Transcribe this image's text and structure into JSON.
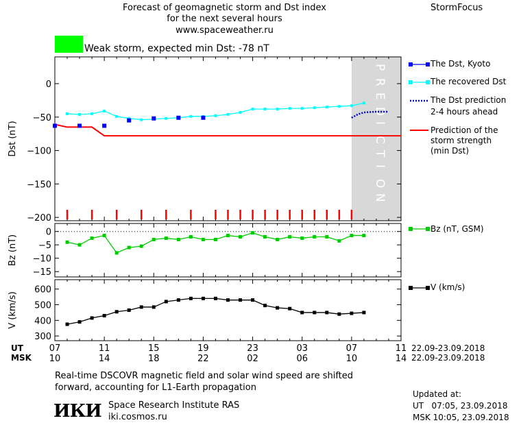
{
  "header": {
    "title_line1": "Forecast of geomagnetic storm and Dst index",
    "title_line2": "for the next several hours",
    "website": "www.spaceweather.ru",
    "brand": "StormFocus"
  },
  "status": {
    "swatch_color": "#00ff00",
    "text": "Weak storm, expected min Dst: -78 nT"
  },
  "colors": {
    "dst_kyoto": "#0000ff",
    "dst_recovered": "#00ffff",
    "dst_prediction": "#0000cc",
    "storm_strength": "#ff0000",
    "bz": "#00cc00",
    "v": "#000000",
    "prediction_band": "#d8d8d8",
    "markers": "#ff0000"
  },
  "prediction_label": "PREDICTION",
  "time_axis": {
    "ut_label": "UT",
    "msk_label": "MSK",
    "ut_ticks": [
      "07",
      "11",
      "15",
      "19",
      "23",
      "03",
      "07",
      "11"
    ],
    "msk_ticks": [
      "10",
      "14",
      "18",
      "22",
      "02",
      "06",
      "10",
      "14"
    ],
    "date_range_ut": "22.09-23.09.2018",
    "date_range_msk": "22.09-23.09.2018"
  },
  "chart_data": [
    {
      "type": "line",
      "panel": "dst",
      "xlabel": "",
      "ylabel": "Dst (nT)",
      "xlim_hours": [
        7,
        35
      ],
      "ylim": [
        -205,
        40
      ],
      "yticks": [
        0,
        -50,
        -100,
        -150,
        -200
      ],
      "prediction_start_hour": 31,
      "series": [
        {
          "name": "The Dst, Kyoto",
          "x": [
            7,
            9,
            11,
            13,
            15,
            17,
            19
          ],
          "values": [
            -63,
            -63,
            -63,
            -55,
            -52,
            -51,
            -51
          ]
        },
        {
          "name": "The recovered Dst",
          "x": [
            8,
            9,
            10,
            11,
            12,
            13,
            14,
            15,
            16,
            17,
            18,
            19,
            20,
            21,
            22,
            23,
            24,
            25,
            26,
            27,
            28,
            29,
            30,
            31,
            32
          ],
          "values": [
            -45,
            -46,
            -45,
            -41,
            -49,
            -52,
            -54,
            -53,
            -52,
            -51,
            -49,
            -49,
            -48,
            -46,
            -43,
            -38,
            -38,
            -38,
            -37,
            -37,
            -36,
            -35,
            -34,
            -33,
            -29
          ]
        },
        {
          "name": "The Dst prediction 2-4 hours ahead",
          "x": [
            31,
            31.5,
            32,
            33,
            34
          ],
          "values": [
            -51,
            -46,
            -43,
            -42,
            -42
          ]
        },
        {
          "name": "Prediction of the storm strength (min Dst)",
          "x": [
            7,
            8,
            10,
            11,
            35
          ],
          "values": [
            -61,
            -65,
            -65,
            -78,
            -78
          ]
        }
      ],
      "event_marker_hours": [
        8,
        10,
        12,
        14,
        16,
        18,
        20,
        21,
        22,
        23,
        24,
        25,
        26,
        27,
        28,
        29,
        30,
        31
      ]
    },
    {
      "type": "line",
      "panel": "bz",
      "xlabel": "",
      "ylabel": "Bz (nT)",
      "ylim": [
        -17,
        3
      ],
      "yticks": [
        0,
        -5,
        -10,
        -15
      ],
      "series": [
        {
          "name": "Bz (nT, GSM)",
          "x": [
            8,
            9,
            10,
            11,
            12,
            13,
            14,
            15,
            16,
            17,
            18,
            19,
            20,
            21,
            22,
            23,
            24,
            25,
            26,
            27,
            28,
            29,
            30,
            31,
            32
          ],
          "values": [
            -4,
            -5,
            -2.5,
            -1.5,
            -8,
            -6,
            -5.5,
            -3,
            -2.5,
            -3,
            -2,
            -3,
            -3,
            -1.5,
            -2,
            -0.5,
            -2,
            -3,
            -2,
            -2.5,
            -2,
            -2,
            -3.5,
            -1.5,
            -1.5
          ]
        }
      ]
    },
    {
      "type": "line",
      "panel": "v",
      "xlabel": "",
      "ylabel": "V (km/s)",
      "ylim": [
        270,
        660
      ],
      "yticks": [
        300,
        400,
        500,
        600
      ],
      "series": [
        {
          "name": "V (km/s)",
          "x": [
            8,
            9,
            10,
            11,
            12,
            13,
            14,
            15,
            16,
            17,
            18,
            19,
            20,
            21,
            22,
            23,
            24,
            25,
            26,
            27,
            28,
            29,
            30,
            31,
            32
          ],
          "values": [
            375,
            390,
            415,
            430,
            455,
            465,
            485,
            485,
            520,
            530,
            540,
            540,
            540,
            530,
            530,
            530,
            495,
            480,
            475,
            450,
            450,
            450,
            440,
            445,
            450
          ]
        }
      ]
    }
  ],
  "legend": {
    "dst_kyoto": "The Dst, Kyoto",
    "dst_recovered": "The recovered Dst",
    "dst_prediction_1": "The Dst prediction",
    "dst_prediction_2": "2-4 hours ahead",
    "storm_1": "Prediction of the",
    "storm_2": "storm strength",
    "storm_3": "(min Dst)",
    "bz": "Bz (nT, GSM)",
    "v": "V (km/s)"
  },
  "axis_labels": {
    "dst": "Dst (nT)",
    "bz": "Bz (nT)",
    "v": "V (km/s)"
  },
  "footer": {
    "note_line1": "Real-time DSCOVR magnetic field and solar wind speed are shifted",
    "note_line2": "forward, accounting for L1-Earth propagation",
    "logo": "ИКИ",
    "institute": "Space Research Institute RAS",
    "site": "iki.cosmos.ru",
    "updated_label": "Updated at:",
    "updated_ut": "UT   07:05, 23.09.2018",
    "updated_msk": "MSK 10:05, 23.09.2018"
  }
}
